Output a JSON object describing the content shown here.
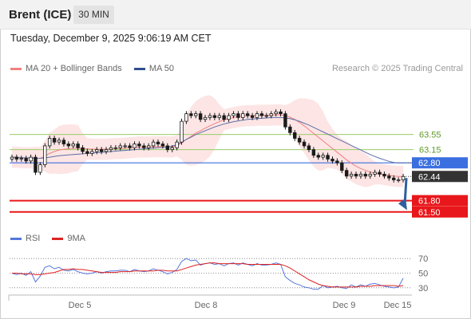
{
  "header": {
    "title": "Brent (ICE)",
    "timeframe": "30 MIN"
  },
  "timestamp": "Tuesday, December 9, 2025 9:06:19 AM CET",
  "legend": {
    "ma20_label": "MA 20 + Bollinger Bands",
    "ma50_label": "MA 50",
    "copyright": "Research © 2025 Trading Central",
    "rsi_label": "RSI",
    "rsi_ma_label": "9MA"
  },
  "colors": {
    "ma20": "#f08080",
    "bollinger_fill": "#fde2e2",
    "ma50": "#5b6ea8",
    "pivot": "#3b6fe0",
    "resistance": "#99cc66",
    "support": "#e8171b",
    "current": "#333333",
    "candle": "#1a1a1a",
    "rsi": "#5577dd",
    "rsi_ma": "#dd2222",
    "arrow": "#2f5f9e"
  },
  "levels": [
    {
      "value": 63.55,
      "label": "63.55",
      "type": "resistance"
    },
    {
      "value": 63.15,
      "label": "63.15",
      "type": "resistance"
    },
    {
      "value": 62.8,
      "label": "62.80",
      "type": "pivot"
    },
    {
      "value": 62.44,
      "label": "62.44",
      "type": "current"
    },
    {
      "value": 61.8,
      "label": "61.80",
      "type": "support"
    },
    {
      "value": 61.5,
      "label": "61.50",
      "type": "support"
    }
  ],
  "x_ticks": [
    "Dec 5",
    "Dec 8",
    "Dec 9",
    "Dec 15"
  ],
  "rsi_ticks": [
    "70",
    "50",
    "30"
  ],
  "chart_data": [
    {
      "type": "candlestick",
      "title": "Brent (ICE) 30 MIN",
      "xlabel": "",
      "ylabel": "",
      "ylim": [
        61.2,
        65.0
      ],
      "closes": [
        62.95,
        62.9,
        62.92,
        62.85,
        62.95,
        62.55,
        62.75,
        63.25,
        63.45,
        63.35,
        63.4,
        63.3,
        63.25,
        63.3,
        63.2,
        63.1,
        63.05,
        63.1,
        63.15,
        63.1,
        63.15,
        63.2,
        63.2,
        63.25,
        63.25,
        63.2,
        63.3,
        63.25,
        63.2,
        63.25,
        63.35,
        63.3,
        63.25,
        63.15,
        63.2,
        63.35,
        63.9,
        64.1,
        64.05,
        64.1,
        63.95,
        64.0,
        64.05,
        64.0,
        64.05,
        63.95,
        64.05,
        64.1,
        64.0,
        64.1,
        64.05,
        64.0,
        64.1,
        64.05,
        64.05,
        64.1,
        64.15,
        64.1,
        63.75,
        63.6,
        63.45,
        63.35,
        63.25,
        63.15,
        63.0,
        62.95,
        63.0,
        62.9,
        62.85,
        62.8,
        62.6,
        62.45,
        62.5,
        62.45,
        62.5,
        62.45,
        62.5,
        62.55,
        62.5,
        62.45,
        62.4,
        62.35,
        62.35,
        62.44
      ],
      "series": [
        {
          "name": "MA 20",
          "values": [
            62.95,
            62.95,
            62.94,
            62.93,
            62.94,
            62.92,
            62.92,
            62.98,
            63.05,
            63.1,
            63.14,
            63.16,
            63.17,
            63.19,
            63.19,
            63.18,
            63.17,
            63.16,
            63.16,
            63.16,
            63.16,
            63.17,
            63.18,
            63.18,
            63.19,
            63.2,
            63.21,
            63.22,
            63.22,
            63.22,
            63.23,
            63.23,
            63.23,
            63.22,
            63.22,
            63.25,
            63.33,
            63.42,
            63.5,
            63.59,
            63.65,
            63.72,
            63.78,
            63.84,
            63.89,
            63.94,
            63.97,
            64.0,
            64.02,
            64.04,
            64.05,
            64.05,
            64.06,
            64.06,
            64.06,
            64.06,
            64.07,
            64.07,
            64.05,
            64.01,
            63.95,
            63.87,
            63.78,
            63.68,
            63.58,
            63.48,
            63.38,
            63.28,
            63.18,
            63.08,
            62.98,
            62.88,
            62.79,
            62.71,
            62.65,
            62.6,
            62.56,
            62.53,
            62.51,
            62.49,
            62.47,
            62.45,
            62.44,
            62.44
          ]
        },
        {
          "name": "MA 50",
          "values": [
            62.95,
            62.95,
            62.94,
            62.93,
            62.93,
            62.92,
            62.92,
            62.93,
            62.95,
            62.97,
            62.99,
            63.0,
            63.01,
            63.02,
            63.03,
            63.04,
            63.05,
            63.06,
            63.07,
            63.08,
            63.09,
            63.1,
            63.11,
            63.12,
            63.13,
            63.14,
            63.15,
            63.16,
            63.17,
            63.18,
            63.19,
            63.2,
            63.21,
            63.22,
            63.24,
            63.28,
            63.35,
            63.42,
            63.48,
            63.55,
            63.6,
            63.65,
            63.7,
            63.75,
            63.79,
            63.83,
            63.86,
            63.89,
            63.91,
            63.93,
            63.95,
            63.96,
            63.97,
            63.98,
            63.99,
            64.0,
            64.0,
            64.0,
            63.99,
            63.97,
            63.94,
            63.9,
            63.85,
            63.8,
            63.74,
            63.68,
            63.62,
            63.56,
            63.5,
            63.44,
            63.38,
            63.32,
            63.26,
            63.2,
            63.14,
            63.08,
            63.02,
            62.97,
            62.92,
            62.88,
            62.84,
            62.81,
            62.8,
            62.8
          ]
        }
      ],
      "legend_position": "top-left",
      "grid": false
    },
    {
      "type": "line",
      "title": "RSI",
      "ylim": [
        20,
        80
      ],
      "series": [
        {
          "name": "RSI",
          "values": [
            50,
            48,
            50,
            47,
            52,
            38,
            46,
            58,
            60,
            56,
            58,
            54,
            53,
            55,
            52,
            50,
            49,
            50,
            52,
            50,
            52,
            53,
            53,
            54,
            54,
            52,
            55,
            53,
            52,
            53,
            56,
            54,
            52,
            49,
            51,
            55,
            66,
            70,
            67,
            68,
            61,
            63,
            64,
            62,
            63,
            60,
            63,
            64,
            61,
            64,
            62,
            60,
            63,
            61,
            61,
            62,
            64,
            62,
            45,
            40,
            36,
            34,
            31,
            30,
            28,
            28,
            33,
            30,
            31,
            32,
            30,
            29,
            34,
            31,
            34,
            32,
            35,
            36,
            34,
            32,
            31,
            30,
            31,
            43
          ]
        },
        {
          "name": "9MA",
          "values": [
            50,
            50,
            49,
            49,
            49,
            48,
            48,
            49,
            50,
            51,
            53,
            55,
            55,
            56,
            55,
            55,
            54,
            53,
            52,
            51,
            51,
            51,
            51,
            52,
            52,
            52,
            53,
            53,
            53,
            53,
            53,
            54,
            54,
            53,
            53,
            53,
            55,
            57,
            59,
            61,
            62,
            63,
            64,
            64,
            63,
            63,
            63,
            63,
            63,
            63,
            62,
            62,
            62,
            62,
            62,
            62,
            62,
            62,
            60,
            57,
            53,
            49,
            45,
            41,
            38,
            35,
            33,
            32,
            31,
            31,
            31,
            31,
            31,
            31,
            32,
            32,
            32,
            33,
            33,
            33,
            33,
            33,
            32,
            33
          ]
        }
      ]
    }
  ]
}
